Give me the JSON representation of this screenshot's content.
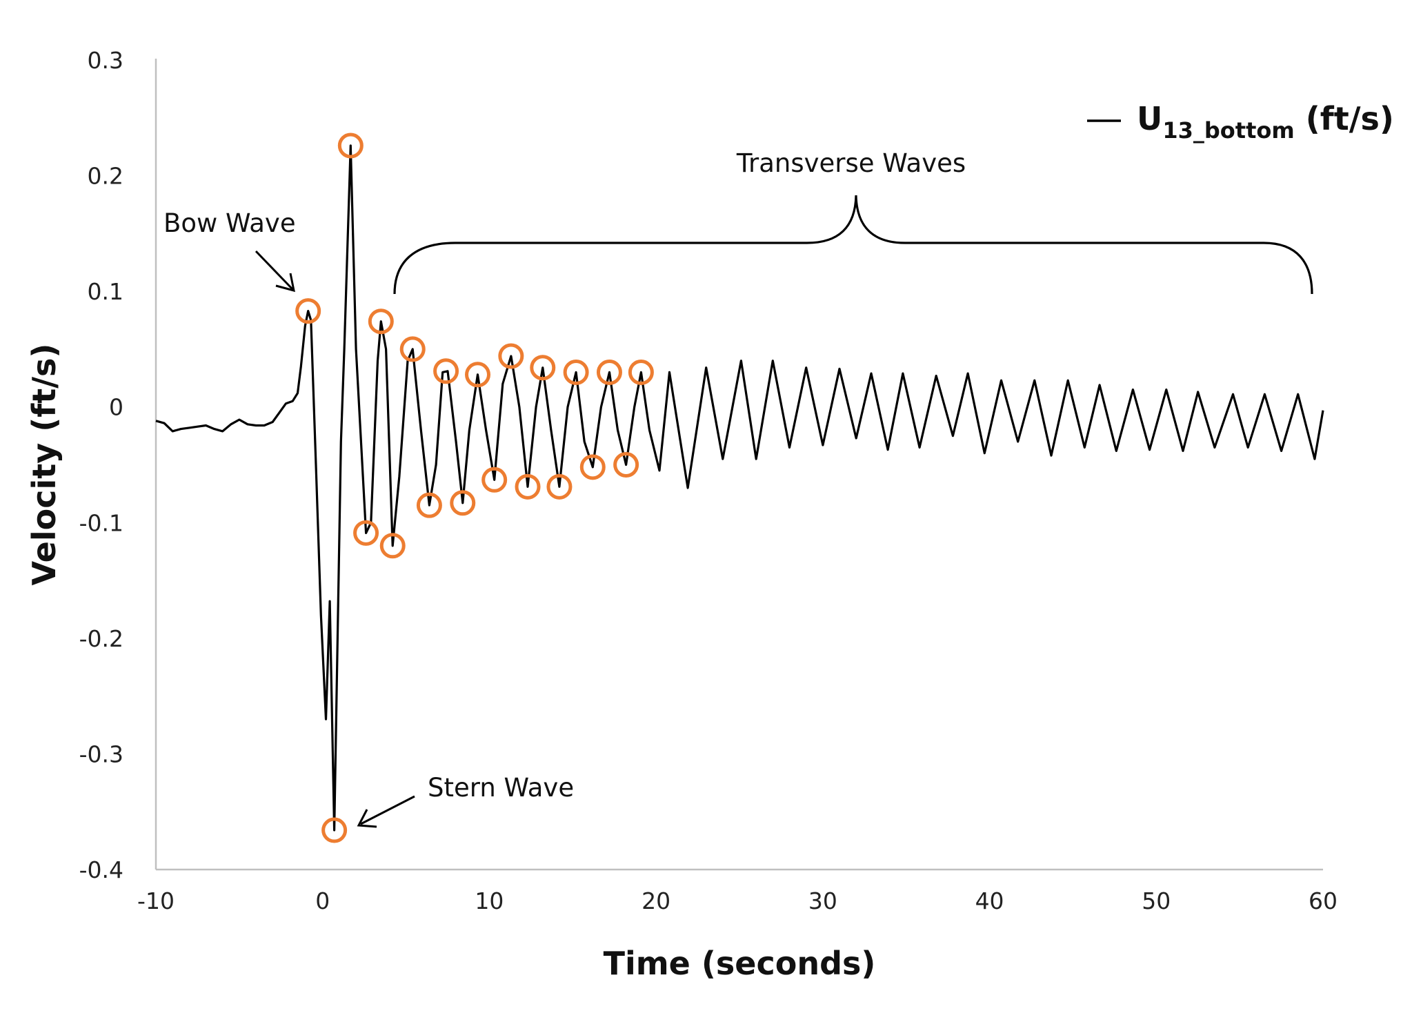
{
  "chart_data": {
    "type": "line",
    "title": "",
    "xlabel": "Time (seconds)",
    "ylabel": "Velocity (ft/s)",
    "xlim": [
      -10,
      60
    ],
    "ylim": [
      -0.4,
      0.3
    ],
    "xticks": [
      "-10",
      "0",
      "10",
      "20",
      "30",
      "40",
      "50",
      "60"
    ],
    "yticks": [
      "0.3",
      "0.2",
      "0.1",
      "0",
      "-0.1",
      "-0.2",
      "-0.3",
      "-0.4"
    ],
    "grid": false,
    "legend_placement": "top-right",
    "series": [
      {
        "name_main": "U",
        "name_sub": "13_bottom",
        "name_unit": " (ft/s)",
        "color": "#000000",
        "points": [
          [
            -10,
            -0.012
          ],
          [
            -9.5,
            -0.014
          ],
          [
            -9,
            -0.021
          ],
          [
            -8.5,
            -0.019
          ],
          [
            -8,
            -0.018
          ],
          [
            -7.5,
            -0.017
          ],
          [
            -7,
            -0.016
          ],
          [
            -6.5,
            -0.019
          ],
          [
            -6,
            -0.021
          ],
          [
            -5.5,
            -0.015
          ],
          [
            -5,
            -0.011
          ],
          [
            -4.5,
            -0.015
          ],
          [
            -4,
            -0.016
          ],
          [
            -3.5,
            -0.016
          ],
          [
            -3,
            -0.013
          ],
          [
            -2.6,
            -0.005
          ],
          [
            -2.2,
            0.003
          ],
          [
            -1.8,
            0.005
          ],
          [
            -1.5,
            0.012
          ],
          [
            -1.3,
            0.035
          ],
          [
            -1.05,
            0.07
          ],
          [
            -0.87,
            0.083
          ],
          [
            -0.7,
            0.075
          ],
          [
            -0.4,
            -0.05
          ],
          [
            -0.1,
            -0.18
          ],
          [
            0.2,
            -0.27
          ],
          [
            0.43,
            -0.168
          ],
          [
            0.7,
            -0.366
          ],
          [
            1.1,
            -0.03
          ],
          [
            1.3,
            0.05
          ],
          [
            1.68,
            0.226
          ],
          [
            2.0,
            0.05
          ],
          [
            2.6,
            -0.109
          ],
          [
            2.9,
            -0.1
          ],
          [
            3.3,
            0.04
          ],
          [
            3.5,
            0.074
          ],
          [
            3.8,
            0.05
          ],
          [
            4.2,
            -0.12
          ],
          [
            4.6,
            -0.06
          ],
          [
            5.1,
            0.04
          ],
          [
            5.4,
            0.05
          ],
          [
            5.9,
            -0.02
          ],
          [
            6.4,
            -0.085
          ],
          [
            6.8,
            -0.05
          ],
          [
            7.2,
            0.03
          ],
          [
            7.5,
            0.031
          ],
          [
            8.0,
            -0.03
          ],
          [
            8.4,
            -0.083
          ],
          [
            8.8,
            -0.02
          ],
          [
            9.3,
            0.028
          ],
          [
            9.8,
            -0.02
          ],
          [
            10.3,
            -0.063
          ],
          [
            10.8,
            0.02
          ],
          [
            11.3,
            0.044
          ],
          [
            11.8,
            0.0
          ],
          [
            12.3,
            -0.069
          ],
          [
            12.8,
            0.0
          ],
          [
            13.2,
            0.034
          ],
          [
            13.7,
            -0.02
          ],
          [
            14.2,
            -0.069
          ],
          [
            14.7,
            0.0
          ],
          [
            15.2,
            0.03
          ],
          [
            15.7,
            -0.03
          ],
          [
            16.2,
            -0.052
          ],
          [
            16.7,
            0.0
          ],
          [
            17.2,
            0.03
          ],
          [
            17.7,
            -0.02
          ],
          [
            18.2,
            -0.05
          ],
          [
            18.7,
            0.0
          ],
          [
            19.1,
            0.03
          ],
          [
            19.6,
            -0.02
          ],
          [
            20.2,
            -0.055
          ],
          [
            20.8,
            0.03
          ],
          [
            21.9,
            -0.07
          ],
          [
            23.0,
            0.034
          ],
          [
            24.0,
            -0.045
          ],
          [
            25.1,
            0.04
          ],
          [
            26.0,
            -0.045
          ],
          [
            27.0,
            0.04
          ],
          [
            28.0,
            -0.035
          ],
          [
            29.0,
            0.034
          ],
          [
            30.0,
            -0.033
          ],
          [
            31.0,
            0.033
          ],
          [
            32.0,
            -0.027
          ],
          [
            32.9,
            0.029
          ],
          [
            33.9,
            -0.037
          ],
          [
            34.8,
            0.029
          ],
          [
            35.8,
            -0.035
          ],
          [
            36.8,
            0.027
          ],
          [
            37.8,
            -0.025
          ],
          [
            38.7,
            0.029
          ],
          [
            39.7,
            -0.04
          ],
          [
            40.7,
            0.023
          ],
          [
            41.7,
            -0.03
          ],
          [
            42.7,
            0.023
          ],
          [
            43.7,
            -0.042
          ],
          [
            44.7,
            0.023
          ],
          [
            45.7,
            -0.035
          ],
          [
            46.6,
            0.019
          ],
          [
            47.6,
            -0.038
          ],
          [
            48.6,
            0.015
          ],
          [
            49.6,
            -0.037
          ],
          [
            50.6,
            0.015
          ],
          [
            51.6,
            -0.038
          ],
          [
            52.5,
            0.013
          ],
          [
            53.5,
            -0.035
          ],
          [
            54.6,
            0.011
          ],
          [
            55.5,
            -0.035
          ],
          [
            56.5,
            0.011
          ],
          [
            57.5,
            -0.038
          ],
          [
            58.5,
            0.011
          ],
          [
            59.5,
            -0.045
          ],
          [
            60,
            -0.003
          ]
        ]
      }
    ],
    "marked_extrema_color": "#ED7D31",
    "marked_extrema": [
      [
        -0.87,
        0.083
      ],
      [
        1.68,
        0.226
      ],
      [
        0.7,
        -0.366
      ],
      [
        2.6,
        -0.109
      ],
      [
        3.5,
        0.074
      ],
      [
        4.2,
        -0.12
      ],
      [
        5.4,
        0.05
      ],
      [
        6.4,
        -0.085
      ],
      [
        7.4,
        0.031
      ],
      [
        8.4,
        -0.083
      ],
      [
        9.3,
        0.028
      ],
      [
        10.3,
        -0.063
      ],
      [
        11.3,
        0.044
      ],
      [
        12.3,
        -0.069
      ],
      [
        13.2,
        0.034
      ],
      [
        14.2,
        -0.069
      ],
      [
        15.2,
        0.03
      ],
      [
        16.2,
        -0.052
      ],
      [
        17.2,
        0.03
      ],
      [
        18.2,
        -0.05
      ],
      [
        19.1,
        0.03
      ]
    ],
    "annotations": {
      "bow": "Bow Wave",
      "stern": "Stern Wave",
      "transverse": "Transverse Waves"
    }
  }
}
